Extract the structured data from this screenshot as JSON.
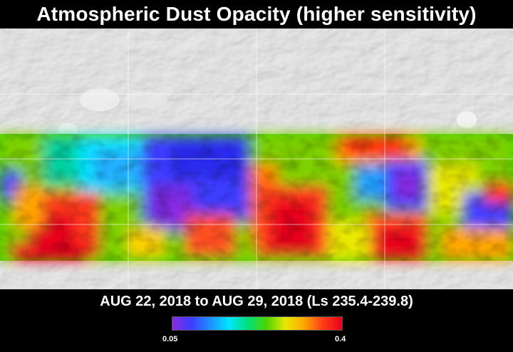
{
  "title": "Atmospheric Dust Opacity (higher sensitivity)",
  "date_range": "AUG 22, 2018 to AUG 29, 2018 (Ls 235.4-239.8)",
  "colorbar": {
    "min_label": "0.05",
    "max_label": "0.4",
    "colors": [
      "#8a2be2",
      "#3c3cff",
      "#1e90ff",
      "#00e5ff",
      "#00e07a",
      "#4cd400",
      "#e8e800",
      "#ffa500",
      "#ff3b1a",
      "#e8001a"
    ]
  }
}
